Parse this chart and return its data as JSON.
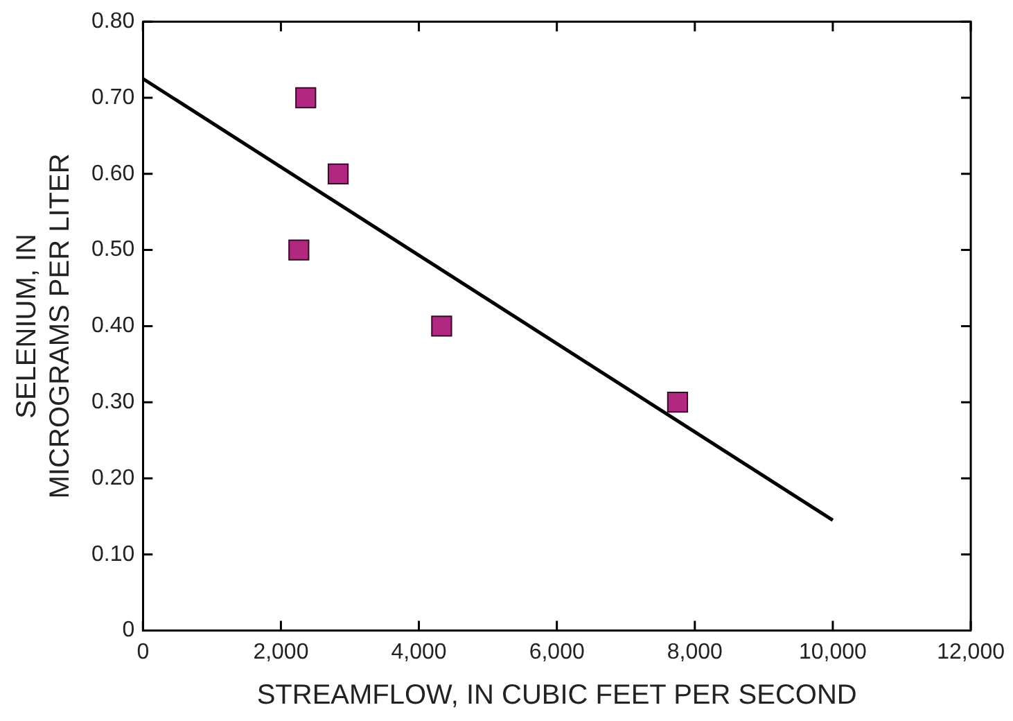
{
  "chart_data": {
    "type": "scatter",
    "xlabel": "STREAMFLOW, IN CUBIC FEET PER SECOND",
    "ylabel": "SELENIUM, IN\nMICROGRAMS PER LITER",
    "xlim": [
      0,
      12000
    ],
    "xticks": [
      0,
      {
        "value": 2000,
        "label": "2,000"
      },
      {
        "value": 4000,
        "label": "4,000"
      },
      {
        "value": 6000,
        "label": "6,000"
      },
      {
        "value": 8000,
        "label": "8,000"
      },
      {
        "value": 10000,
        "label": "10,000"
      },
      {
        "value": 12000,
        "label": "12,000"
      }
    ],
    "ylim": [
      0,
      0.8
    ],
    "yticks": [
      0,
      {
        "value": 0.1,
        "label": "0.10"
      },
      {
        "value": 0.2,
        "label": "0.20"
      },
      {
        "value": 0.3,
        "label": "0.30"
      },
      {
        "value": 0.4,
        "label": "0.40"
      },
      {
        "value": 0.5,
        "label": "0.50"
      },
      {
        "value": 0.6,
        "label": "0.60"
      },
      {
        "value": 0.7,
        "label": "0.70"
      },
      {
        "value": 0.8,
        "label": "0.80"
      }
    ],
    "grid": false,
    "legend": false,
    "series": [
      {
        "type": "scatter",
        "marker": "square",
        "color": "#b0287f",
        "x": [
          2360,
          2830,
          2260,
          4330,
          7750
        ],
        "values": [
          0.7,
          0.6,
          0.5,
          0.4,
          0.3
        ]
      },
      {
        "type": "line",
        "color": "#000000",
        "x": [
          0,
          10000
        ],
        "values": [
          0.725,
          0.145
        ]
      }
    ]
  }
}
